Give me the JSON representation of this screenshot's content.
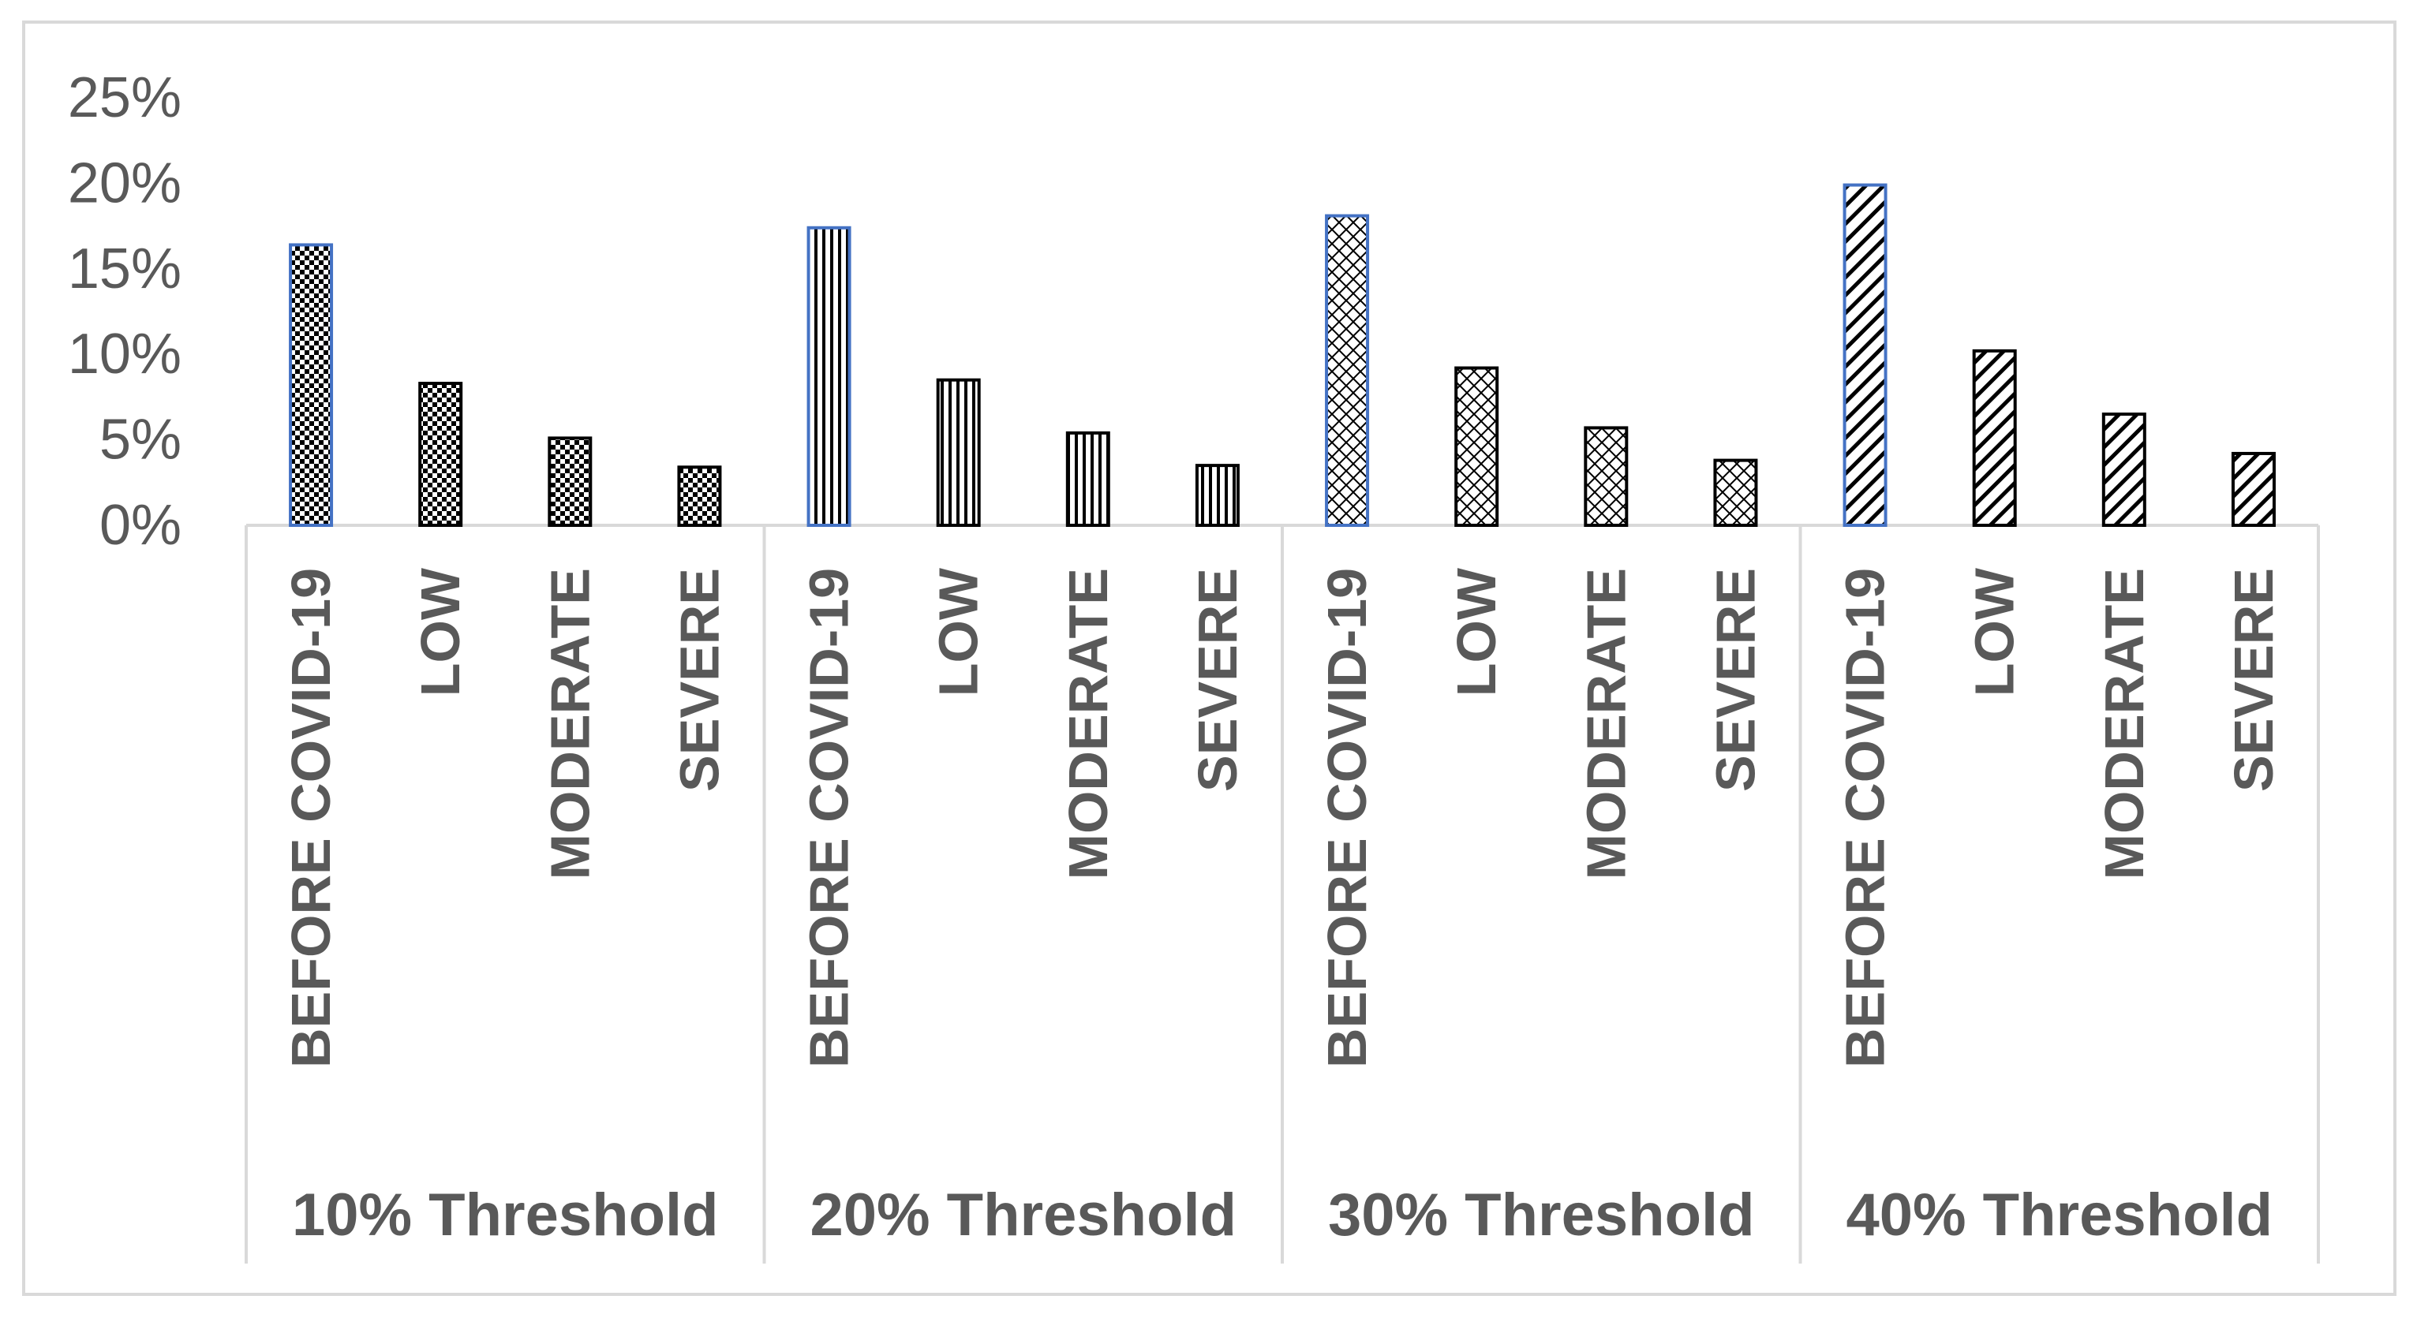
{
  "chart_data": {
    "type": "bar",
    "y_tick_labels": [
      "0%",
      "5%",
      "10%",
      "15%",
      "20%",
      "25%"
    ],
    "ylim": [
      0,
      25
    ],
    "grid": false,
    "legend": "none",
    "groups": [
      {
        "label": "10% Threshold",
        "pattern": "checker",
        "categories": [
          "BEFORE COVID-19",
          "LOW",
          "MODERATE",
          "SEVERE"
        ],
        "values": [
          16.4,
          8.3,
          5.1,
          3.4
        ]
      },
      {
        "label": "20% Threshold",
        "pattern": "vertical-lines",
        "categories": [
          "BEFORE COVID-19",
          "LOW",
          "MODERATE",
          "SEVERE"
        ],
        "values": [
          17.4,
          8.5,
          5.4,
          3.5
        ]
      },
      {
        "label": "30% Threshold",
        "pattern": "lattice",
        "categories": [
          "BEFORE COVID-19",
          "LOW",
          "MODERATE",
          "SEVERE"
        ],
        "values": [
          18.1,
          9.2,
          5.7,
          3.8
        ]
      },
      {
        "label": "40% Threshold",
        "pattern": "diagonal-lines",
        "categories": [
          "BEFORE COVID-19",
          "LOW",
          "MODERATE",
          "SEVERE"
        ],
        "values": [
          19.9,
          10.2,
          6.5,
          4.2
        ]
      }
    ],
    "colors": {
      "highlight_outline": "#4472c4",
      "bar_outline": "#000000",
      "axis": "#d9d9d9",
      "text": "#595959"
    }
  }
}
